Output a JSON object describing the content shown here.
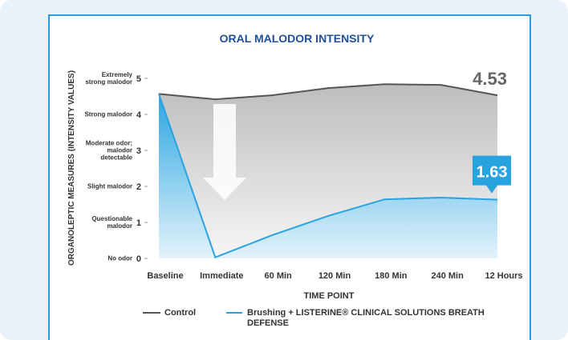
{
  "chart_data": {
    "type": "line",
    "title": "ORAL MALODOR INTENSITY",
    "y_axis_label": "ORGANOLEPTIC MEASURES (INTENSITY VALUES)",
    "x_axis_label": "TIME POINT",
    "categories": [
      "Baseline",
      "Immediate",
      "60 Min",
      "120 Min",
      "180 Min",
      "240 Min",
      "12 Hours"
    ],
    "ylim": [
      0,
      5
    ],
    "yticks": [
      0,
      1,
      2,
      3,
      4,
      5
    ],
    "ytick_descriptions": [
      "No odor",
      "Questionable malodor",
      "Slight malodor",
      "Moderate odor; malodor detectable",
      "Strong malodor",
      "Extremely strong malodor"
    ],
    "series": [
      {
        "name": "Control",
        "color": "#555555",
        "values": [
          4.57,
          4.42,
          4.53,
          4.73,
          4.84,
          4.82,
          4.53
        ]
      },
      {
        "name": "Brushing + LISTERINE® CLINICAL SOLUTIONS BREATH DEFENSE",
        "color": "#29a3e0",
        "values": [
          4.57,
          0.03,
          0.64,
          1.18,
          1.64,
          1.69,
          1.63
        ]
      }
    ]
  }
}
